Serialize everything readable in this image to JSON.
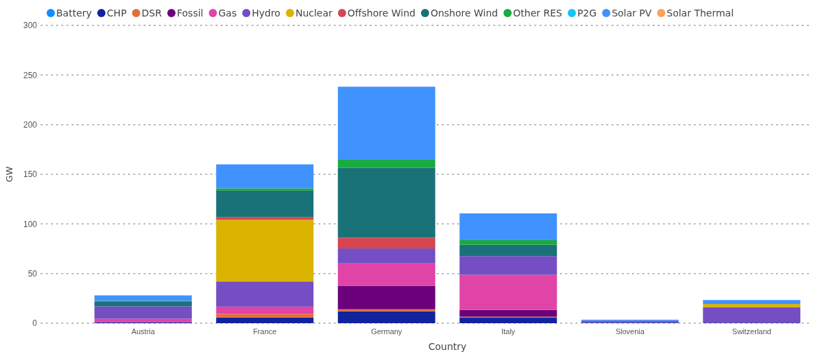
{
  "chart_data": {
    "type": "bar",
    "stacked": true,
    "xlabel": "Country",
    "ylabel": "GW",
    "categories": [
      "Austria",
      "France",
      "Germany",
      "Italy",
      "Slovenia",
      "Switzerland"
    ],
    "ylim": [
      0,
      300
    ],
    "yticks": [
      0,
      50,
      100,
      150,
      200,
      250,
      300
    ],
    "grid": "y",
    "legend": "top left",
    "series": [
      {
        "name": "Battery",
        "color": "#118dff",
        "values": [
          0,
          0,
          0,
          0,
          0,
          0
        ]
      },
      {
        "name": "CHP",
        "color": "#12239e",
        "values": [
          1,
          5.7,
          12,
          5.5,
          0.5,
          0.5
        ]
      },
      {
        "name": "DSR",
        "color": "#e66c37",
        "values": [
          0,
          3.7,
          2,
          1,
          0,
          0
        ]
      },
      {
        "name": "Fossil",
        "color": "#6b007b",
        "values": [
          0,
          0,
          23.7,
          6.9,
          0,
          0
        ]
      },
      {
        "name": "Gas",
        "color": "#e044a7",
        "values": [
          3.5,
          7.3,
          22.6,
          35.3,
          0,
          0
        ]
      },
      {
        "name": "Hydro",
        "color": "#744ec2",
        "values": [
          12.5,
          25.3,
          15,
          18.9,
          2,
          15.5
        ]
      },
      {
        "name": "Nuclear",
        "color": "#d9b300",
        "values": [
          0,
          62.2,
          0,
          0,
          0,
          3.3
        ]
      },
      {
        "name": "Offshore Wind",
        "color": "#d64550",
        "values": [
          0,
          2.8,
          10.8,
          0,
          0,
          0
        ]
      },
      {
        "name": "Onshore Wind",
        "color": "#197278",
        "values": [
          5,
          26.5,
          70.3,
          11.5,
          0,
          0
        ]
      },
      {
        "name": "Other RES",
        "color": "#1aab40",
        "values": [
          0.5,
          2.3,
          8.1,
          4.6,
          0,
          null
        ]
      },
      {
        "name": "P2G",
        "color": "#15c6f4",
        "values": [
          0,
          0,
          0,
          0,
          0,
          0
        ]
      },
      {
        "name": "Solar PV",
        "color": "#4092ff",
        "values": [
          5.5,
          24.2,
          73.7,
          26.9,
          1,
          4
        ]
      },
      {
        "name": "Solar Thermal",
        "color": "#ffa058",
        "values": [
          0,
          0,
          0,
          0,
          0,
          0
        ]
      }
    ]
  }
}
